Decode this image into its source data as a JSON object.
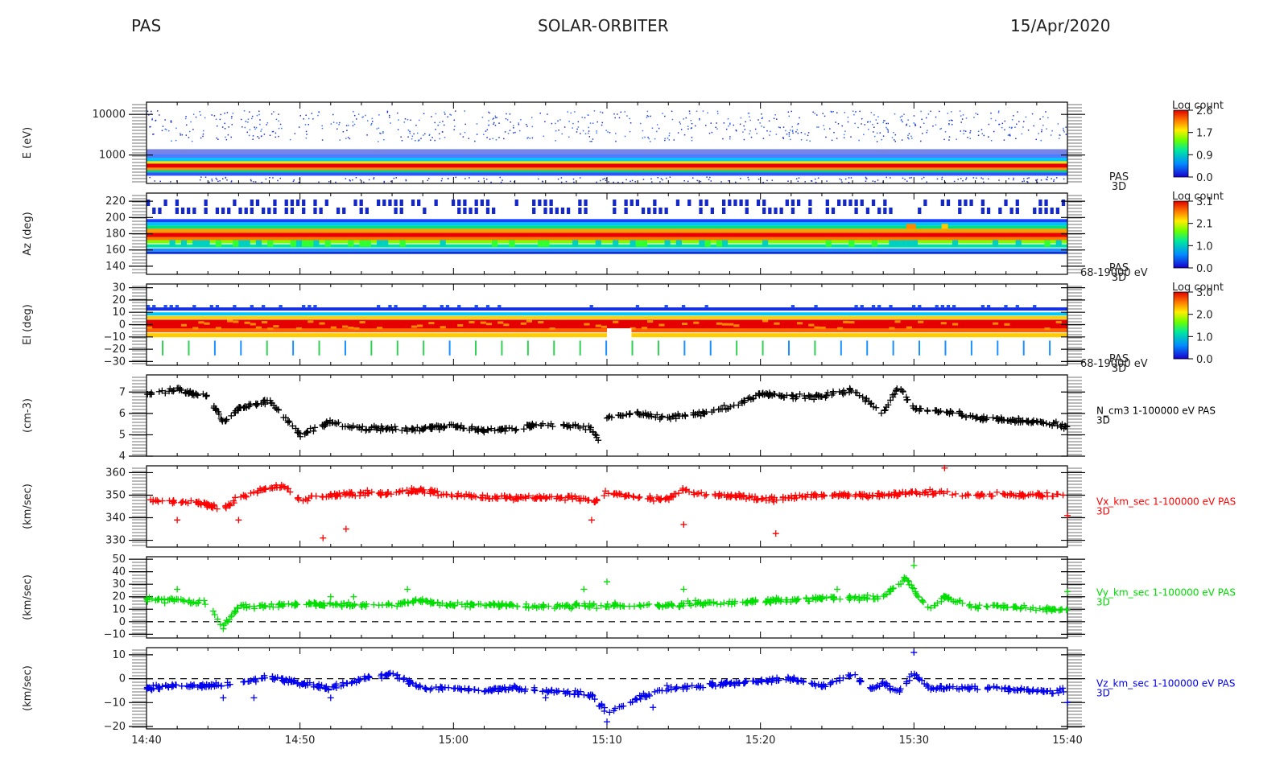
{
  "header": {
    "instrument": "PAS",
    "mission": "SOLAR-ORBITER",
    "date": "15/Apr/2020"
  },
  "colors": {
    "panel_n": "#000000",
    "panel_vx": "#ff0000",
    "panel_vy": "#00dd00",
    "panel_vz": "#0000ee"
  },
  "chart_data": [
    {
      "type": "heatmap",
      "ylabel": "E (eV)",
      "yscale": "log",
      "ylim": [
        200,
        20000
      ],
      "yticks": [
        "10000",
        "1000"
      ],
      "side_label": [
        "PAS",
        "3D"
      ],
      "colorbar": {
        "title": "Log count",
        "ticks": [
          "2.6",
          "1.7",
          "0.9",
          "0.0"
        ]
      },
      "band_center_eV": 560
    },
    {
      "type": "heatmap",
      "ylabel": "Az (deg)",
      "ylim": [
        130,
        230
      ],
      "yticks": [
        "220",
        "200",
        "180",
        "160",
        "140"
      ],
      "side_label": [
        "PAS",
        "3D"
      ],
      "range_label": "68-19000 eV",
      "colorbar": {
        "title": "Log count",
        "ticks": [
          "3.1",
          "2.1",
          "1.0",
          "0.0"
        ]
      },
      "band_center_deg": 182
    },
    {
      "type": "heatmap",
      "ylabel": "El (deg)",
      "ylim": [
        -33,
        33
      ],
      "yticks": [
        "30",
        "20",
        "10",
        "0",
        "−10",
        "−20",
        "−30"
      ],
      "side_label": [
        "PAS",
        "3D"
      ],
      "range_label": "68-19000 eV",
      "colorbar": {
        "title": "Log count",
        "ticks": [
          "3.0",
          "2.0",
          "1.0",
          "0.0"
        ]
      },
      "band_center_deg": 3
    },
    {
      "type": "scatter",
      "ylabel": "(cm-3)",
      "ylim": [
        4,
        7.8
      ],
      "yticks": [
        "7",
        "6",
        "5",
        "4"
      ],
      "series": [
        {
          "name": "N_cm3 1-100000 eV PAS 3D",
          "x": [
            0,
            2,
            4,
            5,
            5.5,
            6,
            8,
            10,
            12,
            14,
            16,
            18,
            20,
            22,
            24,
            26,
            28,
            29,
            29.5,
            30,
            31.5,
            32,
            34,
            36,
            38,
            40,
            42,
            44,
            46,
            48,
            49,
            50,
            52,
            54,
            56,
            58,
            60
          ],
          "y": [
            6.9,
            7.1,
            6.8,
            5.6,
            5.9,
            6.2,
            6.6,
            5.0,
            5.6,
            5.3,
            5.3,
            5.3,
            5.4,
            5.2,
            5.3,
            5.5,
            5.4,
            5.3,
            4.6,
            5.8,
            6.0,
            6.0,
            5.8,
            6.0,
            6.3,
            6.9,
            6.8,
            6.8,
            7.1,
            6.0,
            7.3,
            6.2,
            6.1,
            5.8,
            5.7,
            5.6,
            5.4
          ],
          "ylabel_extra": "N_cm3 1-100000 eV PAS"
        }
      ]
    },
    {
      "type": "scatter",
      "ylabel": "(km/sec)",
      "ylim": [
        327,
        363
      ],
      "yticks": [
        "360",
        "350",
        "340",
        "330"
      ],
      "series": [
        {
          "name": "Vx_km_sec 1-100000 eV PAS 3D",
          "x": [
            0,
            2,
            4,
            5,
            6,
            8,
            9,
            10,
            12,
            14,
            16,
            18,
            20,
            22,
            24,
            28,
            29,
            30,
            31,
            32,
            34,
            35,
            36,
            38,
            40,
            42,
            44,
            46,
            48,
            50,
            52,
            54,
            56,
            58,
            60
          ],
          "y": [
            348,
            347,
            346,
            344,
            349,
            353,
            354,
            348,
            350,
            351,
            351,
            352,
            350,
            349,
            349,
            349,
            347,
            351,
            350,
            349,
            348,
            353,
            350,
            350,
            348,
            349,
            350,
            350,
            350,
            351,
            351,
            350,
            350,
            350,
            350
          ],
          "outliers": [
            [
              2,
              339
            ],
            [
              6,
              339
            ],
            [
              11.5,
              331
            ],
            [
              13,
              335
            ],
            [
              29,
              339
            ],
            [
              35,
              337
            ],
            [
              41,
              333
            ],
            [
              52,
              362
            ],
            [
              60,
              341
            ]
          ]
        }
      ]
    },
    {
      "type": "scatter",
      "ylabel": "(km/sec)",
      "ylim": [
        -13,
        52
      ],
      "yticks": [
        "50",
        "40",
        "30",
        "20",
        "10",
        "0",
        "−10"
      ],
      "series": [
        {
          "name": "Vy_km_sec 1-100000 eV PAS 3D",
          "x": [
            0,
            2,
            4,
            5,
            5.5,
            6,
            8,
            10,
            12,
            14,
            16,
            18,
            20,
            22,
            24,
            26,
            28,
            30,
            32,
            34,
            36,
            38,
            40,
            42,
            44,
            46,
            48,
            49.5,
            50,
            51,
            52,
            54,
            56,
            58,
            60
          ],
          "y": [
            18,
            17,
            15,
            -5,
            5,
            12,
            13,
            14,
            14,
            13,
            13,
            17,
            13,
            14,
            13,
            12,
            13,
            13,
            13,
            13,
            15,
            15,
            17,
            17,
            19,
            19,
            20,
            35,
            25,
            10,
            20,
            12,
            12,
            10,
            10
          ],
          "outliers": [
            [
              2,
              26
            ],
            [
              12,
              20
            ],
            [
              13.5,
              20
            ],
            [
              17,
              26
            ],
            [
              28.5,
              26
            ],
            [
              30,
              32
            ],
            [
              35,
              26
            ],
            [
              45,
              26
            ],
            [
              50,
              45
            ],
            [
              60,
              24
            ]
          ]
        }
      ]
    },
    {
      "type": "scatter",
      "ylabel": "(km/sec)",
      "ylim": [
        -21,
        13
      ],
      "yticks": [
        "10",
        "0",
        "−10",
        "−20"
      ],
      "xticks": [
        "14:40",
        "14:50",
        "15:00",
        "15:10",
        "15:20",
        "15:30",
        "15:40"
      ],
      "series": [
        {
          "name": "Vz_km_sec 1-100000 eV PAS 3D",
          "x": [
            0,
            2,
            4,
            6,
            8,
            10,
            12,
            14,
            16,
            18,
            20,
            22,
            24,
            26,
            28,
            29,
            30,
            31,
            32,
            33,
            34,
            36,
            38,
            40,
            42,
            44,
            46,
            47,
            48,
            49,
            50,
            51,
            52,
            54,
            56,
            58,
            60
          ],
          "y": [
            -4,
            -3,
            -3,
            -2,
            1,
            -2,
            -4,
            0,
            2,
            -4,
            -4,
            -5,
            -4,
            -5,
            -6,
            -7,
            -14,
            -11,
            -8,
            -6,
            -4,
            -3,
            -2,
            -1,
            0,
            -3,
            2,
            -5,
            -2,
            -6,
            2,
            -4,
            -4,
            -4,
            -4,
            -5,
            -5
          ],
          "outliers": [
            [
              50,
              11
            ],
            [
              30,
              -18
            ],
            [
              5,
              -8
            ],
            [
              7,
              -8
            ],
            [
              12,
              -8
            ],
            [
              26,
              -8
            ],
            [
              33,
              -12
            ],
            [
              60,
              -10
            ]
          ]
        }
      ]
    }
  ]
}
